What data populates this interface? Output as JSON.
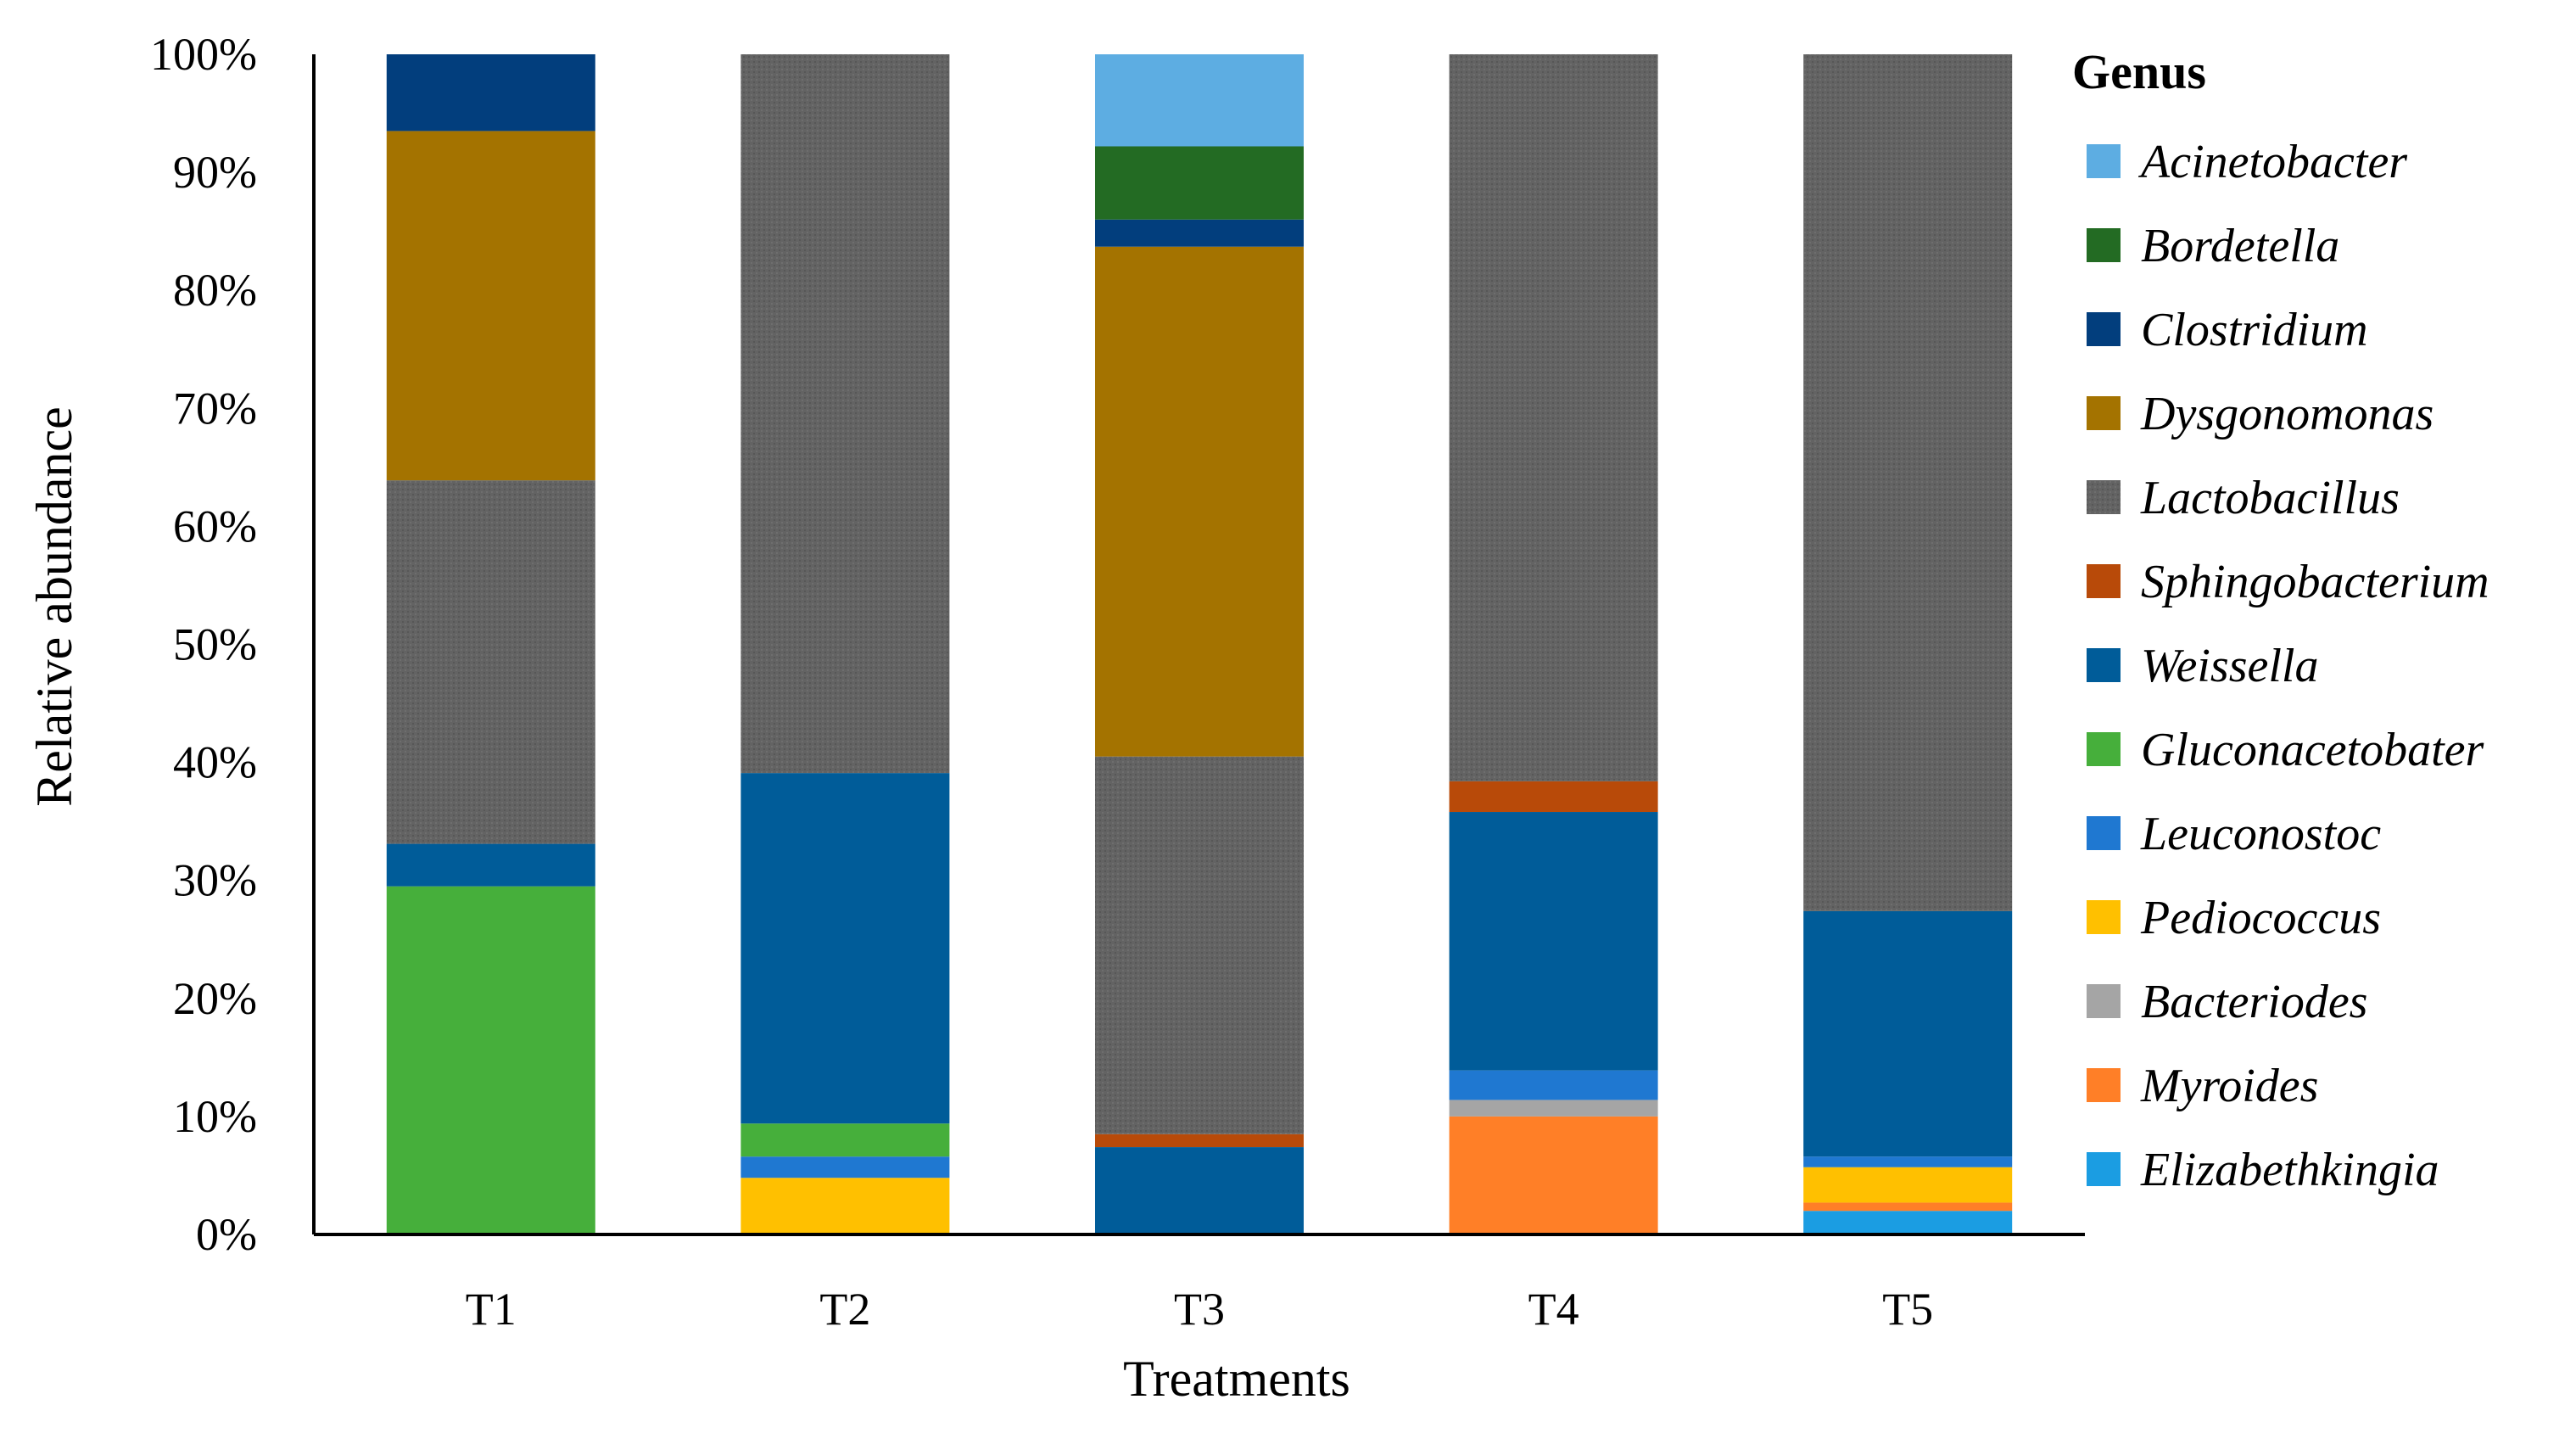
{
  "chart_data": {
    "type": "bar",
    "stacked": true,
    "title": "",
    "xlabel": "Treatments",
    "ylabel": "Relative abundance",
    "ylim": [
      0,
      100
    ],
    "y_tick_labels": [
      "0%",
      "10%",
      "20%",
      "30%",
      "40%",
      "50%",
      "60%",
      "70%",
      "80%",
      "90%",
      "100%"
    ],
    "categories": [
      "T1",
      "T2",
      "T3",
      "T4",
      "T5"
    ],
    "legend_title": "Genus",
    "legend_position": "right",
    "series": [
      {
        "name": "Elizabethkingia",
        "color": "#1B9DE2",
        "values": [
          0,
          0,
          0,
          0,
          2.0
        ]
      },
      {
        "name": "Myroides",
        "color": "#FF7F27",
        "values": [
          0,
          0,
          0,
          10.0,
          0.7
        ]
      },
      {
        "name": "Bacteriodes",
        "color": "#A5A5A5",
        "values": [
          0,
          0,
          0,
          1.4,
          0
        ]
      },
      {
        "name": "Pediococcus",
        "color": "#FFC000",
        "values": [
          0,
          4.8,
          0,
          0,
          3.0
        ]
      },
      {
        "name": "Leuconostoc",
        "color": "#1F78D1",
        "values": [
          0,
          1.8,
          0,
          2.5,
          0.9
        ]
      },
      {
        "name": "Gluconacetobater",
        "color": "#46AF3B",
        "values": [
          29.5,
          2.8,
          0,
          0,
          0
        ]
      },
      {
        "name": "Weissella",
        "color": "#005C99",
        "values": [
          3.6,
          29.7,
          7.4,
          21.9,
          20.8
        ]
      },
      {
        "name": "Sphingobacterium",
        "color": "#B84A09",
        "values": [
          0,
          0,
          1.1,
          2.6,
          0
        ]
      },
      {
        "name": "Lactobacillus",
        "color": "#636363",
        "values": [
          30.8,
          60.9,
          32.0,
          61.6,
          72.6
        ]
      },
      {
        "name": "Dysgonomonas",
        "color": "#A47300",
        "values": [
          29.6,
          0,
          43.2,
          0,
          0
        ]
      },
      {
        "name": "Clostridium",
        "color": "#023E7D",
        "values": [
          6.5,
          0,
          2.3,
          0,
          0
        ]
      },
      {
        "name": "Bordetella",
        "color": "#236B23",
        "values": [
          0,
          0,
          6.2,
          0,
          0
        ]
      },
      {
        "name": "Acinetobacter",
        "color": "#5DADE2",
        "values": [
          0,
          0,
          7.8,
          0,
          0
        ]
      }
    ],
    "legend_order": [
      "Acinetobacter",
      "Bordetella",
      "Clostridium",
      "Dysgonomonas",
      "Lactobacillus",
      "Sphingobacterium",
      "Weissella",
      "Gluconacetobater",
      "Leuconostoc",
      "Pediococcus",
      "Bacteriodes",
      "Myroides",
      "Elizabethkingia"
    ]
  }
}
